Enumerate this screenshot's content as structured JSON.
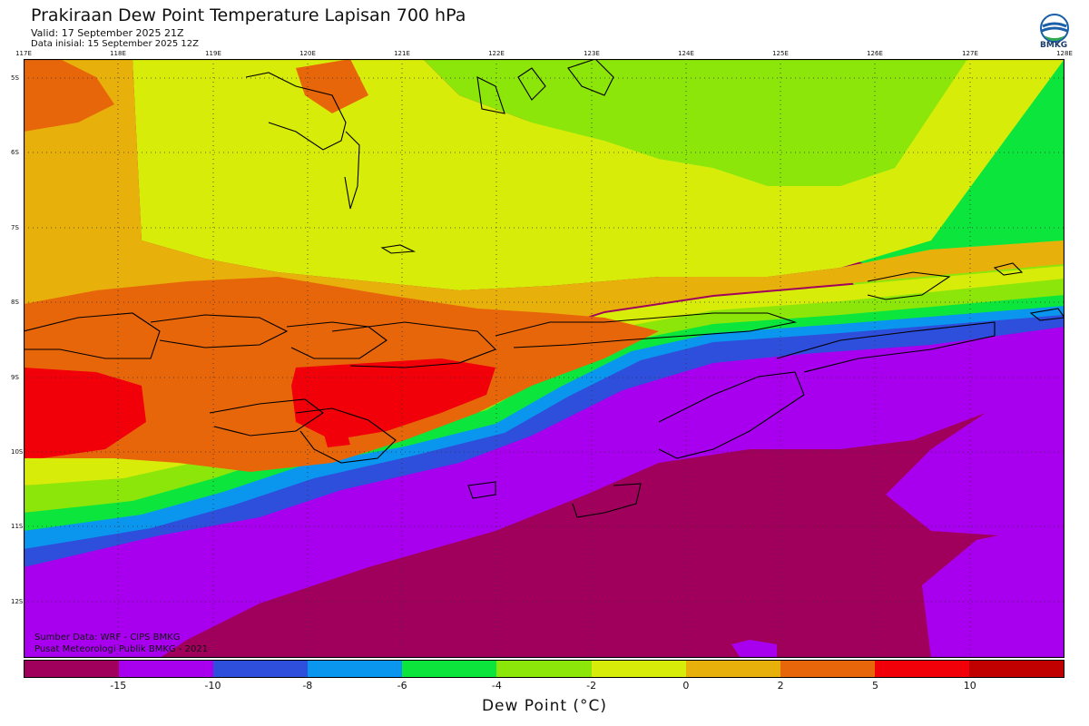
{
  "header": {
    "title": "Prakiraan Dew Point Temperature Lapisan 700 hPa",
    "valid": "Valid: 17 September 2025 21Z",
    "init": "Data inisial: 15 September 2025 12Z",
    "logo_text": "BMKG"
  },
  "map": {
    "lon_labels": [
      "117E",
      "118E",
      "119E",
      "120E",
      "121E",
      "122E",
      "123E",
      "124E",
      "125E",
      "126E",
      "127E",
      "128E"
    ],
    "lat_labels": [
      "5S",
      "6S",
      "7S",
      "8S",
      "9S",
      "10S",
      "11S",
      "12S"
    ],
    "credits": [
      "Sumber Data: WRF - CIPS BMKG",
      "Pusat Meteorologi Publik BMKG - 2021"
    ]
  },
  "colorbar": {
    "label": "Dew Point (°C)",
    "ticks": [
      "-15",
      "-10",
      "-8",
      "-6",
      "-4",
      "-2",
      "0",
      "2",
      "5",
      "10"
    ],
    "colors": [
      "#a0005c",
      "#a800ee",
      "#2e4fdc",
      "#0a96ee",
      "#0ce63c",
      "#8ce60a",
      "#d8ec0a",
      "#e8b00a",
      "#e8660a",
      "#f2000a",
      "#c00000"
    ]
  }
}
